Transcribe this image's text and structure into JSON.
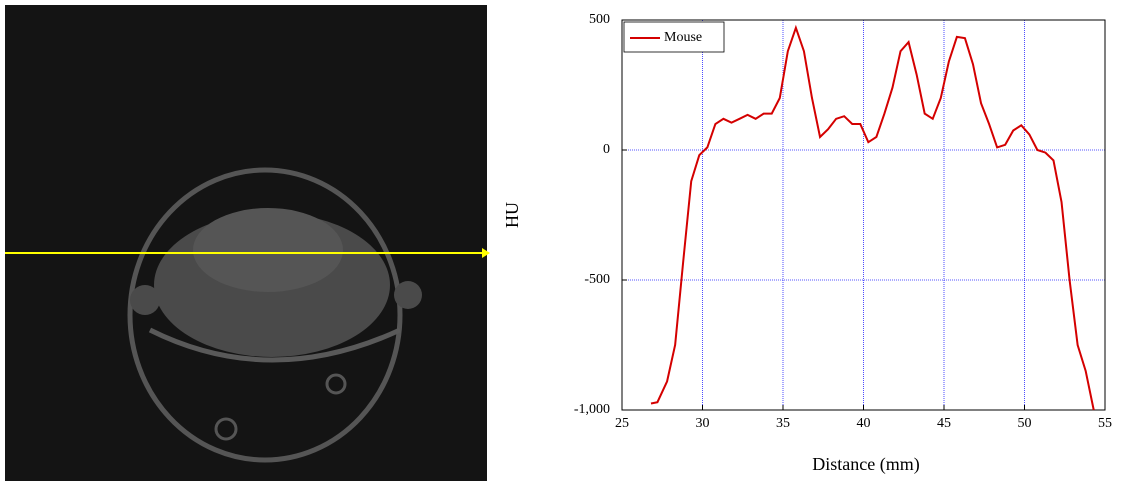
{
  "chart_data": {
    "type": "line",
    "x_label": "Distance (mm)",
    "y_label": "HU",
    "x": [
      26.8,
      27.2,
      27.8,
      28.3,
      28.8,
      29.3,
      29.8,
      30.3,
      30.8,
      31.3,
      31.8,
      32.3,
      32.8,
      33.3,
      33.8,
      34.3,
      34.8,
      35.3,
      35.8,
      36.3,
      36.8,
      37.3,
      37.8,
      38.3,
      38.8,
      39.3,
      39.8,
      40.3,
      40.8,
      41.3,
      41.8,
      42.3,
      42.8,
      43.3,
      43.8,
      44.3,
      44.8,
      45.3,
      45.8,
      46.3,
      46.8,
      47.3,
      47.8,
      48.3,
      48.8,
      49.3,
      49.8,
      50.3,
      50.8,
      51.3,
      51.8,
      52.3,
      52.8,
      53.3,
      53.8,
      54.3
    ],
    "series": [
      {
        "name": "Mouse",
        "color": "#d40000",
        "values": [
          -975,
          -970,
          -890,
          -750,
          -430,
          -120,
          -20,
          10,
          100,
          120,
          105,
          120,
          135,
          120,
          140,
          140,
          200,
          380,
          470,
          380,
          200,
          50,
          80,
          120,
          130,
          100,
          100,
          30,
          50,
          140,
          240,
          380,
          415,
          290,
          140,
          120,
          200,
          340,
          435,
          430,
          330,
          180,
          100,
          10,
          20,
          75,
          95,
          60,
          0,
          -10,
          -40,
          -200,
          -500,
          -750,
          -850,
          -1000
        ]
      }
    ],
    "xlim": [
      25,
      55
    ],
    "xticks": [
      25,
      30,
      35,
      40,
      45,
      50,
      55
    ],
    "ylim": [
      -1000,
      500
    ],
    "yticks": [
      {
        "value": -1000,
        "label": "-1,000"
      },
      -500,
      0,
      500
    ],
    "grid": true,
    "legend": "upper left"
  }
}
